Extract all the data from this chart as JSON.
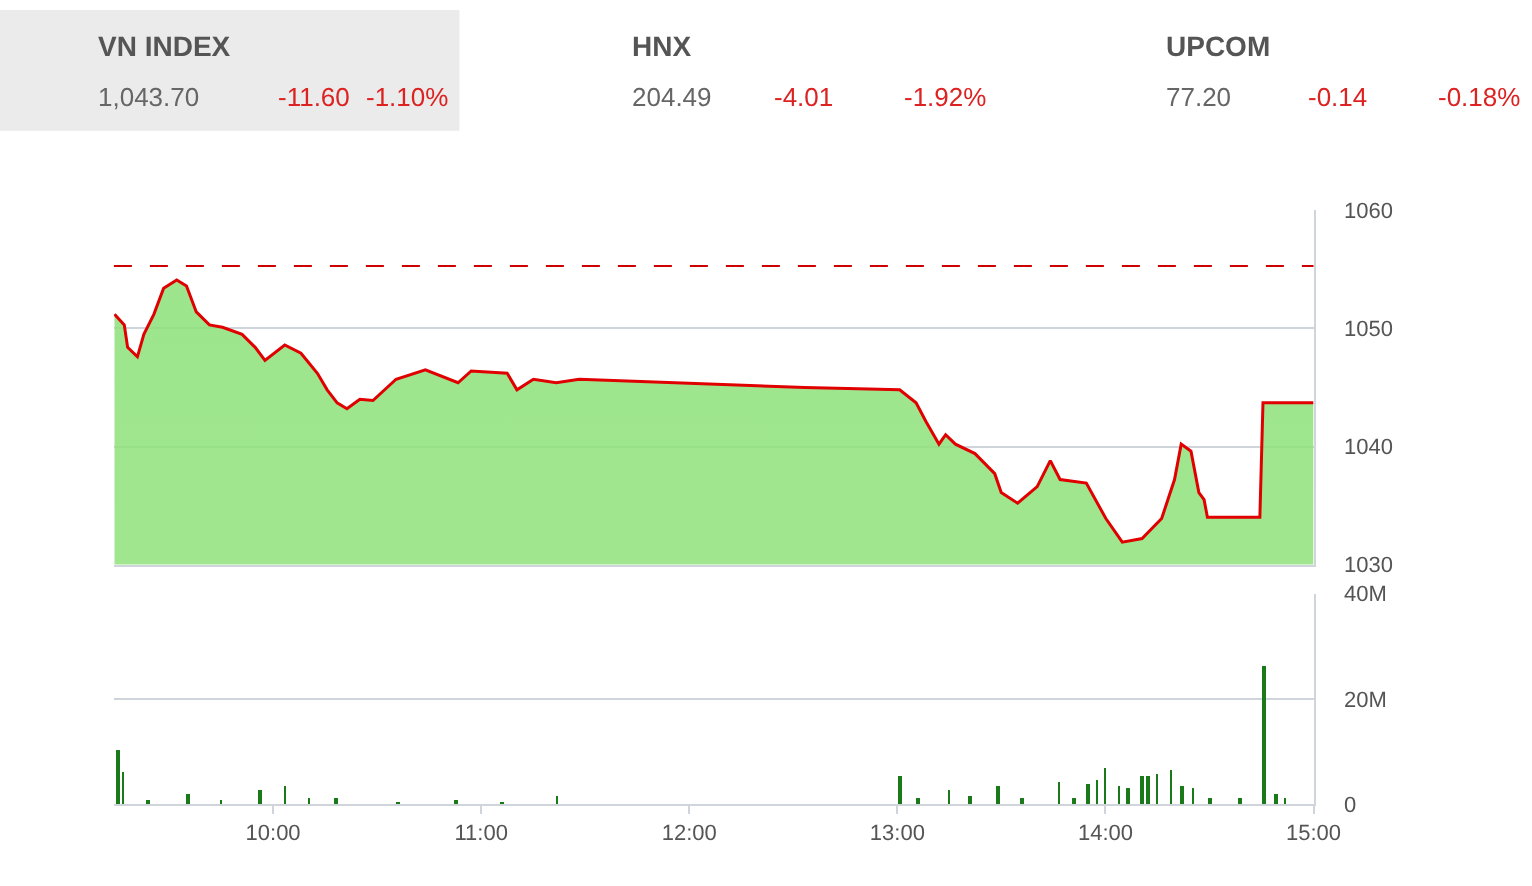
{
  "chart_data": [
    {
      "type": "other",
      "annotations": [
        "VN INDEX",
        "1,043.70",
        "-11.60",
        "-1.10%",
        "HNX",
        "204.49",
        "-4.01",
        "-1.92%",
        "UPCOM",
        "77.20",
        "-0.14",
        "-0.18%"
      ]
    },
    {
      "type": "area",
      "tick_labels": "y",
      "grid": "y",
      "xlim": [
        9.235,
        15.0
      ],
      "ylim": [
        1030,
        1060
      ],
      "yticks": [
        1030,
        1040,
        1050,
        1060
      ],
      "ref_lines": [
        {
          "axis": "y",
          "value": 1055.3,
          "color": "#cc0000",
          "line_style": "dashed"
        }
      ],
      "series": [
        {
          "color": "#e00000",
          "x": [
            9.238,
            9.285,
            9.301,
            9.348,
            9.379,
            9.427,
            9.474,
            9.537,
            9.584,
            9.631,
            9.694,
            9.757,
            9.851,
            9.914,
            9.961,
            10.056,
            10.134,
            10.213,
            10.26,
            10.308,
            10.355,
            10.417,
            10.48,
            10.591,
            10.732,
            10.889,
            10.952,
            11.125,
            11.172,
            11.251,
            11.361,
            11.471,
            12.556,
            13.011,
            13.09,
            13.138,
            13.2,
            13.232,
            13.279,
            13.373,
            13.468,
            13.499,
            13.578,
            13.672,
            13.735,
            13.782,
            13.908,
            14.002,
            14.081,
            14.176,
            14.27,
            14.332,
            14.364,
            14.411,
            14.449,
            14.474,
            14.49,
            14.742,
            14.757,
            15.0
          ],
          "values": [
            1051.2,
            1050.3,
            1048.4,
            1047.6,
            1049.5,
            1051.2,
            1053.4,
            1054.1,
            1053.6,
            1051.4,
            1050.3,
            1050.1,
            1049.5,
            1048.4,
            1047.3,
            1048.6,
            1047.9,
            1046.2,
            1044.8,
            1043.7,
            1043.2,
            1044.0,
            1043.9,
            1045.7,
            1046.5,
            1045.4,
            1046.4,
            1046.2,
            1044.8,
            1045.7,
            1045.4,
            1045.7,
            1045.0,
            1044.8,
            1043.7,
            1042.1,
            1040.2,
            1041.0,
            1040.2,
            1039.4,
            1037.7,
            1036.1,
            1035.2,
            1036.6,
            1038.8,
            1037.2,
            1036.9,
            1033.9,
            1031.9,
            1032.2,
            1033.9,
            1037.2,
            1040.2,
            1039.6,
            1036.1,
            1035.5,
            1034.0,
            1034.0,
            1043.7,
            1043.7
          ]
        }
      ]
    },
    {
      "type": "bar",
      "grid": "y",
      "xlim": [
        9.235,
        15.0
      ],
      "xticks": [
        {
          "value": 10,
          "label": "10:00"
        },
        {
          "value": 11,
          "label": "11:00"
        },
        {
          "value": 12,
          "label": "12:00"
        },
        {
          "value": 13,
          "label": "13:00"
        },
        {
          "value": 14,
          "label": "14:00"
        },
        {
          "value": 15,
          "label": "15:00"
        }
      ],
      "ylim": [
        0,
        40000000
      ],
      "yticks": [
        0,
        {
          "value": 20000000,
          "label": "20M"
        },
        {
          "value": 40000000,
          "label": "40M"
        }
      ],
      "series": [
        {
          "color": "#1a7a1a",
          "x": [
            9.256,
            9.281,
            9.4,
            9.591,
            9.75,
            9.935,
            10.056,
            10.172,
            10.3,
            10.6,
            10.88,
            11.1,
            11.364,
            13.012,
            13.1,
            13.249,
            13.35,
            13.485,
            13.6,
            13.774,
            13.85,
            13.916,
            13.959,
            13.997,
            14.066,
            14.109,
            14.174,
            14.204,
            14.247,
            14.312,
            14.367,
            14.419,
            14.5,
            14.647,
            14.763,
            14.819,
            14.862
          ],
          "values": [
            10300000,
            6000000,
            800000,
            2100000,
            900000,
            2600000,
            3600000,
            1200000,
            1000000,
            600000,
            700000,
            500000,
            1400000,
            5300000,
            1000000,
            2800000,
            1500000,
            3300000,
            1200000,
            4100000,
            1000000,
            3800000,
            4700000,
            6900000,
            3300000,
            2900000,
            5200000,
            5200000,
            5700000,
            6400000,
            3400000,
            2900000,
            1000000,
            1200000,
            26200000,
            2100000,
            1200000
          ]
        }
      ]
    }
  ]
}
